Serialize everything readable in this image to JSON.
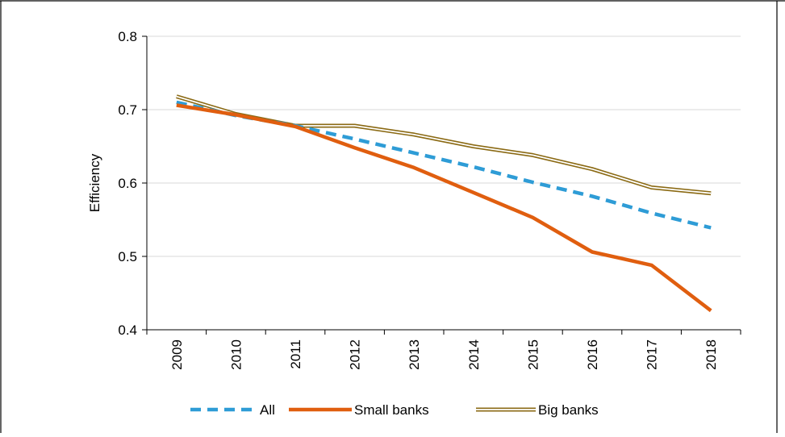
{
  "chart_data": {
    "type": "line",
    "title": "",
    "xlabel": "",
    "ylabel": "Efficiency",
    "categories": [
      "2009",
      "2010",
      "2011",
      "2012",
      "2013",
      "2014",
      "2015",
      "2016",
      "2017",
      "2018"
    ],
    "ylim": [
      0.4,
      0.8
    ],
    "yticks": [
      "0.4",
      "0.5",
      "0.6",
      "0.7",
      "0.8"
    ],
    "grid": "horizontal",
    "legend_position": "bottom",
    "series": [
      {
        "name": "All",
        "style": "dashed",
        "color": "#2E9CD6",
        "values": [
          0.71,
          0.692,
          0.678,
          0.66,
          0.641,
          0.622,
          0.601,
          0.582,
          0.559,
          0.539
        ]
      },
      {
        "name": "Small banks",
        "style": "solid",
        "color": "#E05E0F",
        "values": [
          0.706,
          0.693,
          0.677,
          0.648,
          0.621,
          0.587,
          0.553,
          0.506,
          0.488,
          0.426
        ]
      },
      {
        "name": "Big banks",
        "style": "double",
        "color": "#8B6A14",
        "values": [
          0.718,
          0.694,
          0.678,
          0.678,
          0.666,
          0.65,
          0.638,
          0.619,
          0.594,
          0.586
        ]
      }
    ]
  }
}
